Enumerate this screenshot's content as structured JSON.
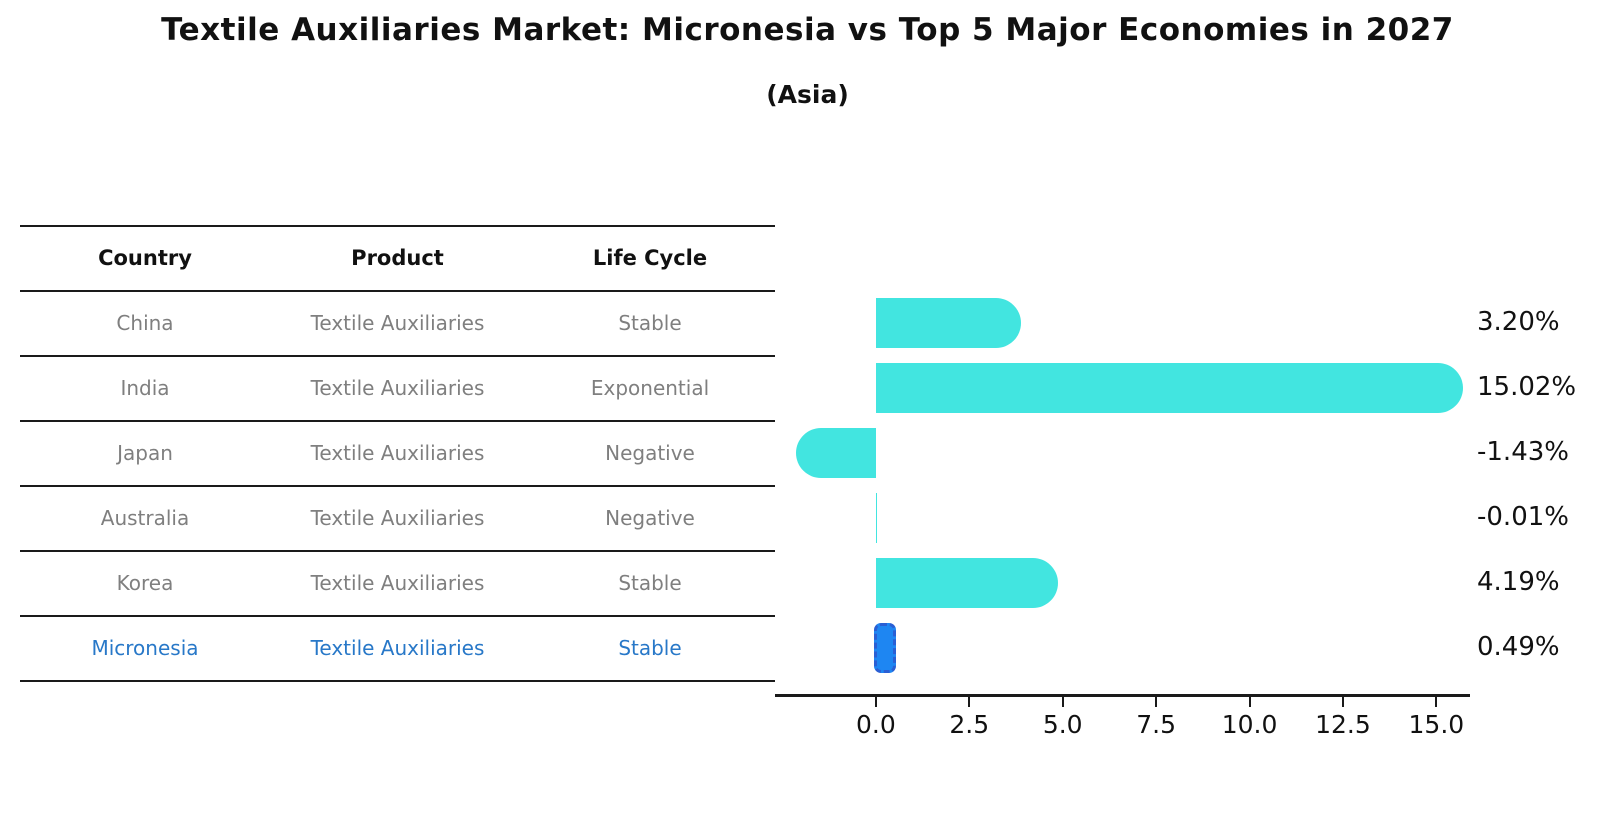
{
  "title": "Textile Auxiliaries Market: Micronesia vs Top 5 Major Economies in 2027",
  "subtitle": "(Asia)",
  "table": {
    "headers": [
      "Country",
      "Product",
      "Life Cycle"
    ],
    "rows": [
      {
        "country": "China",
        "product": "Textile Auxiliaries",
        "life_cycle": "Stable",
        "highlight": false
      },
      {
        "country": "India",
        "product": "Textile Auxiliaries",
        "life_cycle": "Exponential",
        "highlight": false
      },
      {
        "country": "Japan",
        "product": "Textile Auxiliaries",
        "life_cycle": "Negative",
        "highlight": false
      },
      {
        "country": "Australia",
        "product": "Textile Auxiliaries",
        "life_cycle": "Negative",
        "highlight": false
      },
      {
        "country": "Korea",
        "product": "Textile Auxiliaries",
        "life_cycle": "Stable",
        "highlight": false
      },
      {
        "country": "Micronesia",
        "product": "Textile Auxiliaries",
        "life_cycle": "Stable",
        "highlight": true
      }
    ]
  },
  "chart_data": {
    "type": "bar",
    "orientation": "horizontal",
    "title": "Textile Auxiliaries Market: Micronesia vs Top 5 Major Economies in 2027",
    "subtitle": "(Asia)",
    "categories": [
      "China",
      "India",
      "Japan",
      "Australia",
      "Korea",
      "Micronesia"
    ],
    "values": [
      3.2,
      15.02,
      -1.43,
      -0.01,
      4.19,
      0.49
    ],
    "value_labels": [
      "3.20%",
      "15.02%",
      "-1.43%",
      "-0.01%",
      "4.19%",
      "0.49%"
    ],
    "unit": "percent",
    "x_ticks": [
      0.0,
      2.5,
      5.0,
      7.5,
      10.0,
      12.5,
      15.0
    ],
    "x_tick_labels": [
      "0.0",
      "2.5",
      "5.0",
      "7.5",
      "10.0",
      "12.5",
      "15.0"
    ],
    "xlim": [
      -2.7,
      15.9
    ],
    "grid": false,
    "legend": "none",
    "bar_color": "#42e5e0",
    "highlight_index": 5,
    "highlight_bar_color": "#1e86f2",
    "highlight_bar_edge_color": "#2a5fd4",
    "highlight_text_color": "#2878c8",
    "table_text_color": "#7f7f7f",
    "text_color": "#111111"
  }
}
